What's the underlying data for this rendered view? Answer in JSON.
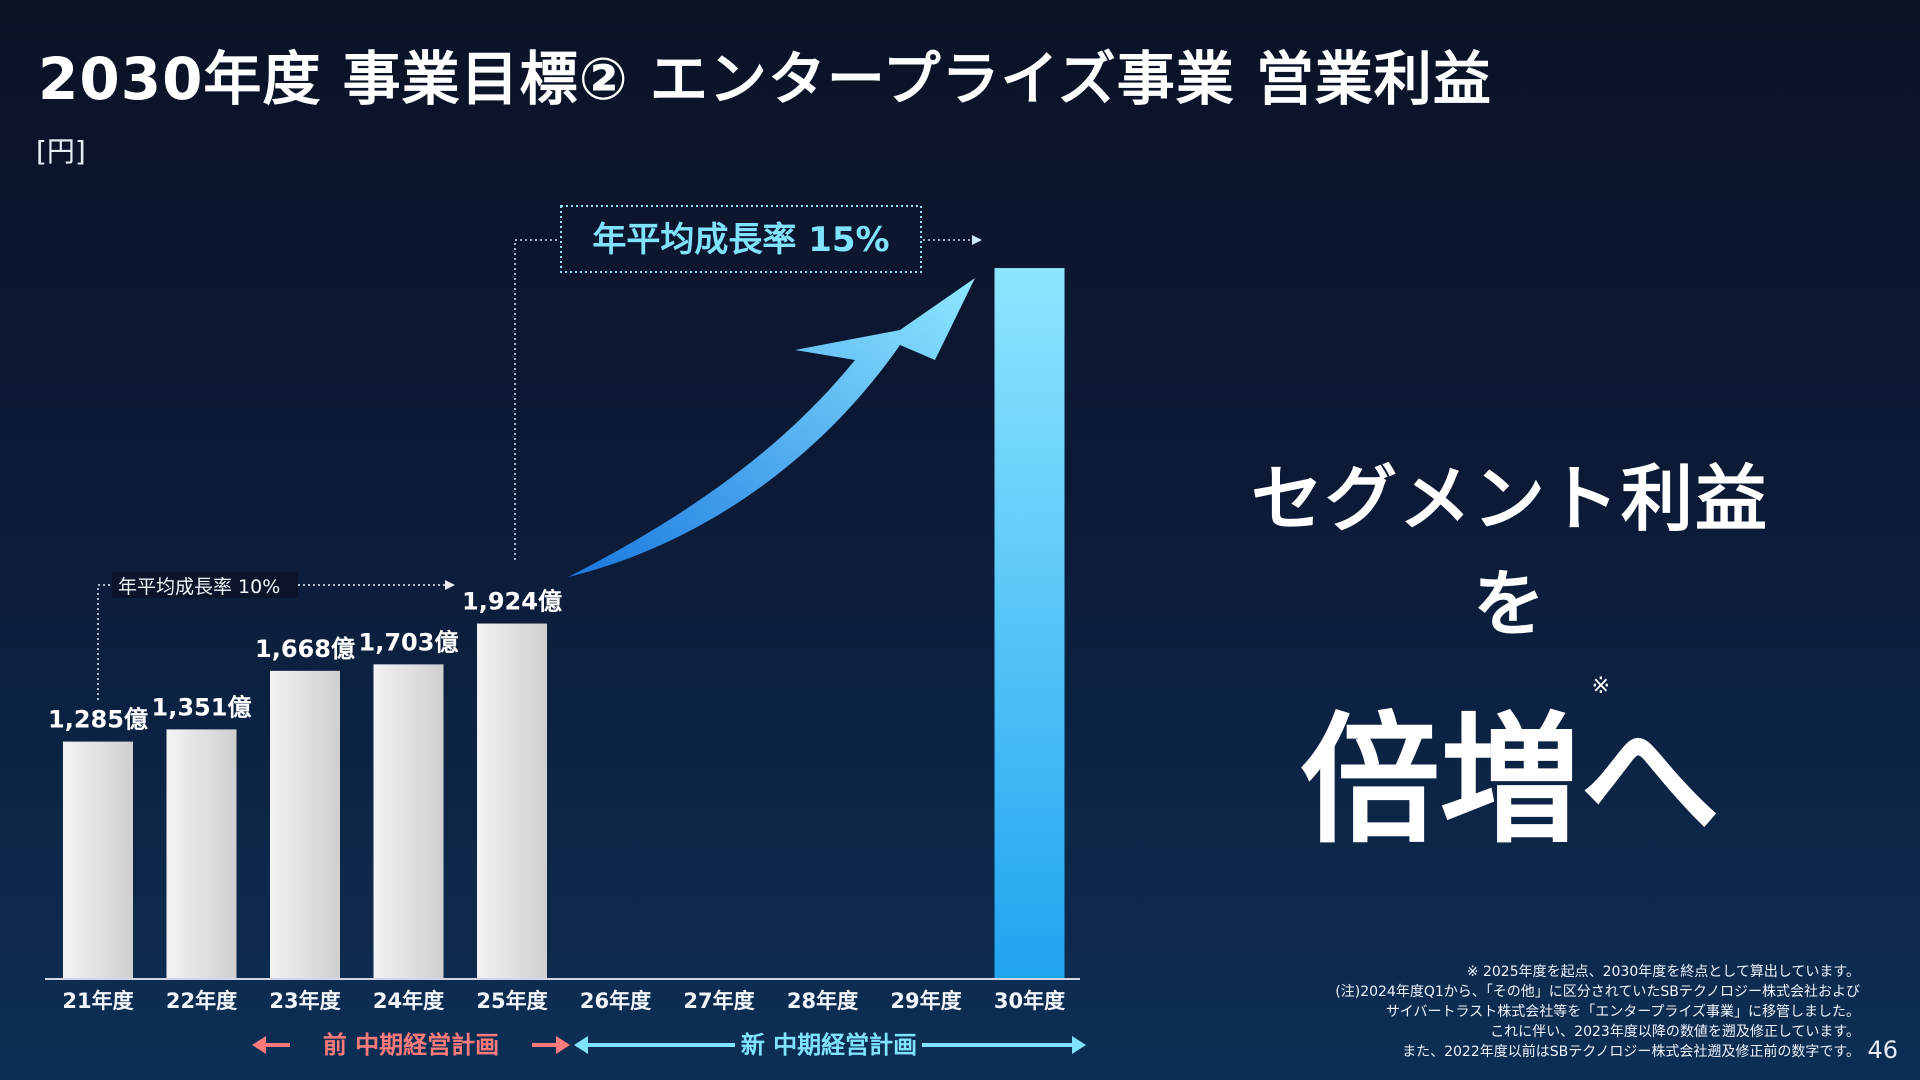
{
  "title": "2030年度 事業目標② エンタープライズ事業 営業利益",
  "unit": "[円]",
  "chart_data": {
    "type": "bar",
    "categories": [
      "21年度",
      "22年度",
      "23年度",
      "24年度",
      "25年度",
      "26年度",
      "27年度",
      "28年度",
      "29年度",
      "30年度"
    ],
    "values": [
      1285,
      1351,
      1668,
      1703,
      1924,
      null,
      null,
      null,
      null,
      3848
    ],
    "data_labels": [
      "1,285億",
      "1,351億",
      "1,668億",
      "1,703億",
      "1,924億",
      "",
      "",
      "",
      "",
      ""
    ],
    "ylim": [
      0,
      4000
    ],
    "annotations": {
      "cagr_old": "年平均成長率 10%",
      "cagr_new": "年平均成長率 15%"
    },
    "periods": {
      "old": "前 中期経営計画",
      "new": "新 中期経営計画"
    },
    "colors": {
      "actual_bar": "#e5e5e5",
      "target_bar": "#3fb5f5",
      "accent_cyan": "#7fe3ff",
      "accent_red": "#ff7b7b"
    }
  },
  "tagline": {
    "line1": "セグメント利益を",
    "line2": "倍増へ",
    "mark": "※"
  },
  "notes": [
    "※ 2025年度を起点、2030年度を終点として算出しています。",
    "(注)2024年度Q1から、「その他」に区分されていたSBテクノロジー株式会社および",
    "サイバートラスト株式会社等を「エンタープライズ事業」に移管しました。",
    "これに伴い、2023年度以降の数値を遡及修正しています。",
    "また、2022年度以前はSBテクノロジー株式会社遡及修正前の数字です。"
  ],
  "page_number": "46"
}
